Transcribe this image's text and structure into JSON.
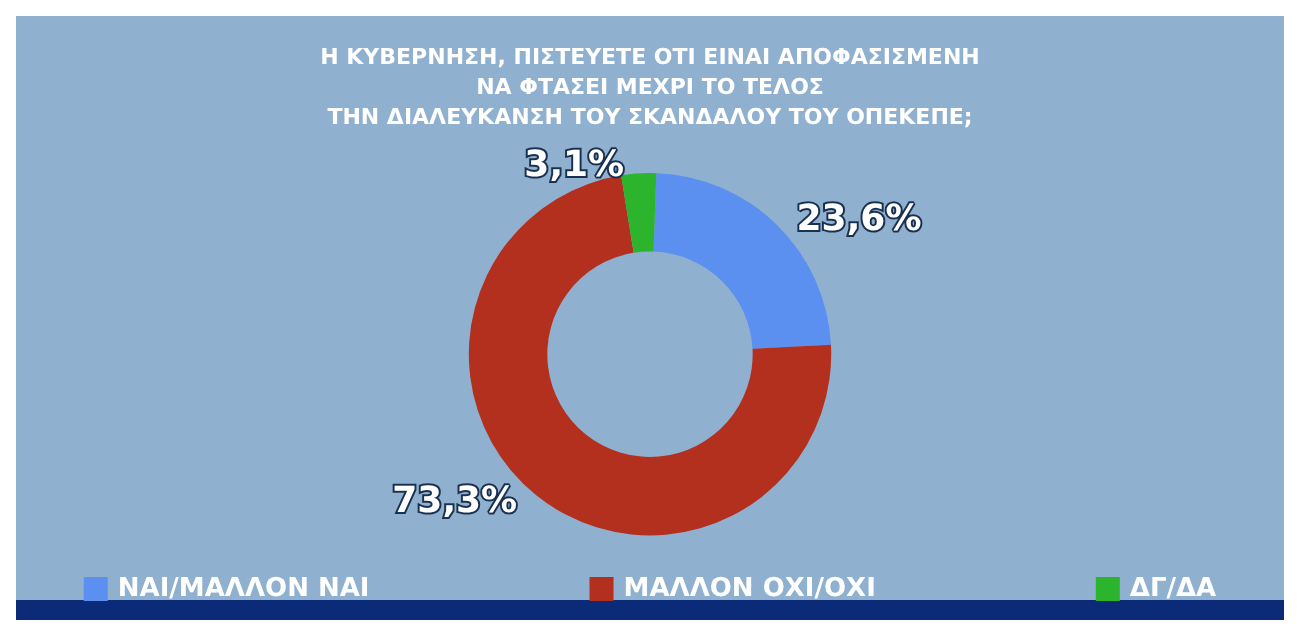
{
  "chart_data": {
    "type": "donut",
    "title": "Η ΚΥΒΕΡΝΗΣΗ, ΠΙΣΤΕΥΕΤΕ ΟΤΙ ΕΙΝΑΙ ΑΠΟΦΑΣΙΣΜΕΝΗ\nΝΑ ΦΤΑΣΕΙ ΜΕΧΡΙ ΤΟ ΤΕΛΟΣ\nΤΗΝ ΔΙΑΛΕΥΚΑΝΣΗ ΤΟΥ ΣΚΑΝΔΑΛΟΥ ΤΟΥ ΟΠΕΚΕΠΕ;",
    "categories": [
      "ΝΑΙ/ΜΑΛΛΟΝ ΝΑΙ",
      "ΜΑΛΛΟΝ ΟΧΙ/ΟΧΙ",
      "ΔΓ/ΔΑ"
    ],
    "values": [
      23.6,
      73.3,
      3.1
    ],
    "value_labels": [
      "23,6%",
      "73,3%",
      "3,1%"
    ],
    "colors": [
      "#5b8ff0",
      "#b3301f",
      "#2cb52c"
    ],
    "legend": "bottom"
  }
}
